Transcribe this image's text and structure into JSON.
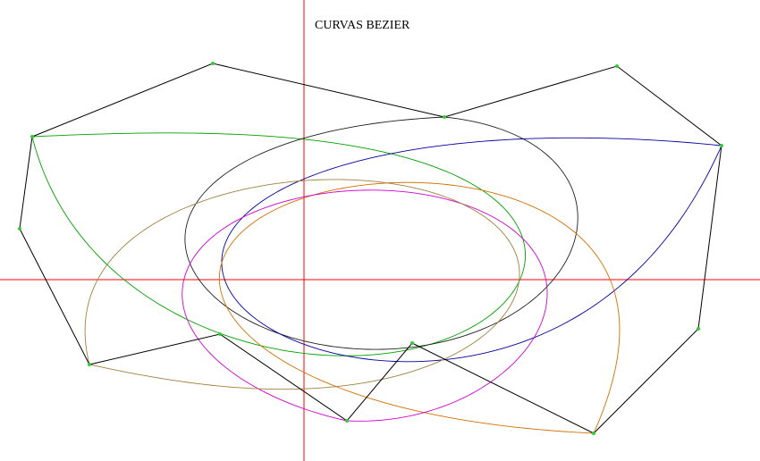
{
  "title": "CURVAS BEZIER",
  "colors": {
    "axis": "#ff0000",
    "polygon": "#000000",
    "control_point": "#33cc33",
    "curves": [
      "#00a000",
      "#202020",
      "#0000a0",
      "#d07000",
      "#d000d0",
      "#a08040"
    ]
  },
  "control_points": [
    [
      36,
      153
    ],
    [
      238,
      71
    ],
    [
      497,
      131
    ],
    [
      690,
      74
    ],
    [
      807,
      163
    ],
    [
      781,
      368
    ],
    [
      664,
      485
    ],
    [
      461,
      384
    ],
    [
      388,
      471
    ],
    [
      246,
      374
    ],
    [
      100,
      408
    ],
    [
      22,
      256
    ]
  ]
}
